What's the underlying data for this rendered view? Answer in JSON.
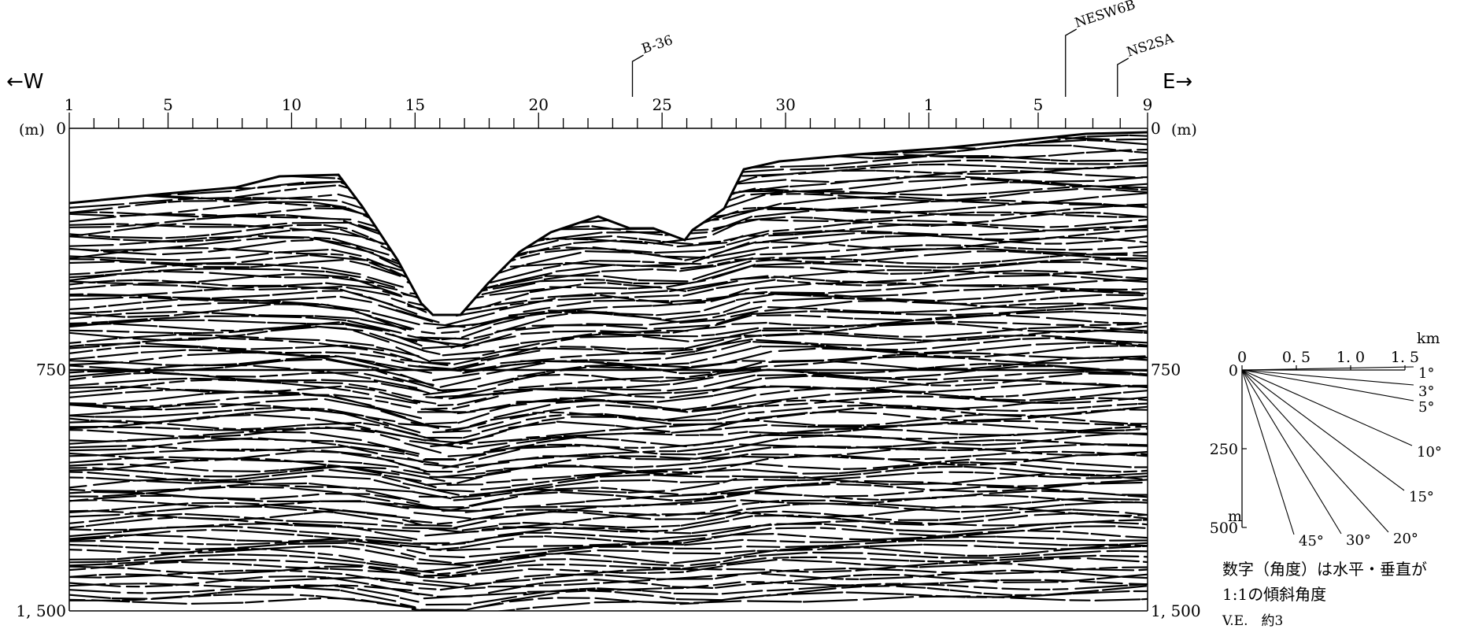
{
  "profile": {
    "west_label": "←W",
    "east_label": "E→",
    "left_unit": "(m)",
    "right_unit": "(m)",
    "top_axis": {
      "segment1_labels": [
        "1",
        "5",
        "10",
        "15",
        "20",
        "25",
        "30"
      ],
      "segment2_labels": [
        "1",
        "5",
        "9"
      ]
    },
    "depth_labels": [
      "0",
      "750",
      "1, 500"
    ],
    "crossings": [
      {
        "name": "B-36",
        "shot": 23.8
      },
      {
        "name": "NESW6B",
        "shot": 6.0
      },
      {
        "name": "NS2SA",
        "shot": 7.9
      }
    ]
  },
  "angle_scale": {
    "unit_h": "km",
    "unit_v": "m",
    "h_ticks": [
      "0",
      "0. 5",
      "1. 0",
      "1. 5"
    ],
    "v_ticks": [
      "0",
      "250",
      "500"
    ],
    "angles": [
      "1°",
      "3°",
      "5°",
      "10°",
      "15°",
      "20°",
      "30°",
      "45°"
    ],
    "note_lines": [
      "数字（角度）は水平・垂直が",
      "1:1の傾斜角度",
      "V.E.　約3"
    ]
  }
}
